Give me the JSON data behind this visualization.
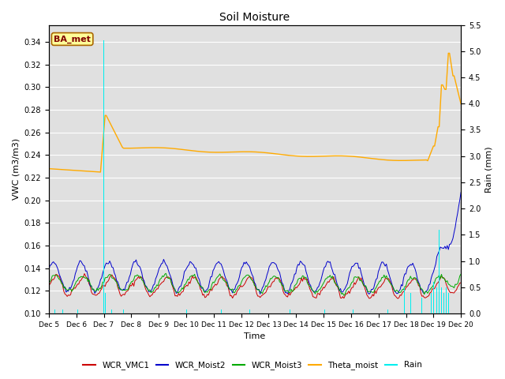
{
  "title": "Soil Moisture",
  "ylabel_left": "VWC (m3/m3)",
  "ylabel_right": "Rain (mm)",
  "xlabel": "Time",
  "ylim_left": [
    0.1,
    0.355
  ],
  "ylim_right": [
    0.0,
    5.5
  ],
  "yticks_left": [
    0.1,
    0.12,
    0.14,
    0.16,
    0.18,
    0.2,
    0.22,
    0.24,
    0.26,
    0.28,
    0.3,
    0.32,
    0.34
  ],
  "yticks_right": [
    0.0,
    0.5,
    1.0,
    1.5,
    2.0,
    2.5,
    3.0,
    3.5,
    4.0,
    4.5,
    5.0,
    5.5
  ],
  "bg_color": "#e0e0e0",
  "colors": {
    "WCR_VMC1": "#cc0000",
    "WCR_Moist2": "#0000cc",
    "WCR_Moist3": "#00aa00",
    "Theta_moist": "#ffaa00",
    "Rain": "#00eeee"
  },
  "label_box": "BA_met",
  "label_box_bg": "#ffff99",
  "label_box_border": "#aa6600",
  "xtick_labels": [
    "Dec 5",
    "Dec 6",
    "Dec 7",
    "Dec 8",
    "Dec 9",
    "Dec 10",
    "Dec 11",
    "Dec 12",
    "Dec 13",
    "Dec 14",
    "Dec 15",
    "Dec 16",
    "Dec 17",
    "Dec 18",
    "Dec 19",
    "Dec 20"
  ]
}
